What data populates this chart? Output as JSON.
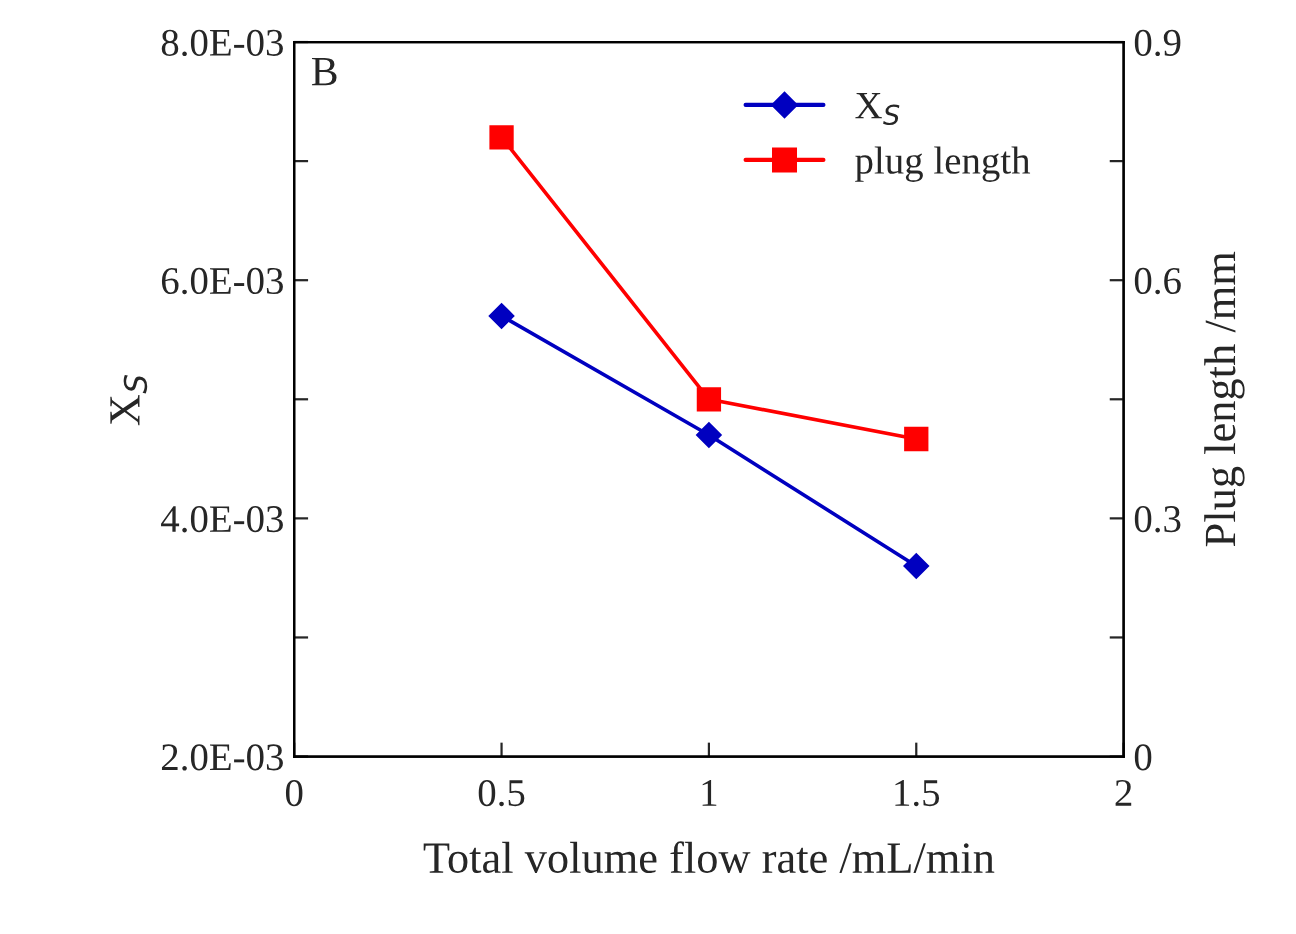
{
  "chart_data": {
    "type": "line",
    "xlabel": "Total volume flow rate /mL/min",
    "ylabel": "X$_{S}$",
    "y2label": "Plug length /mm",
    "x": [
      0.5,
      1,
      1.5
    ],
    "series": [
      {
        "name": "X$_{S}$",
        "color": "#0000c0",
        "values": [
          0.0057,
          0.0047,
          0.0036
        ],
        "marker": "diamond"
      },
      {
        "name": "plug length",
        "color": "#ff0000",
        "values": [
          0.78,
          0.45,
          0.4
        ],
        "marker": "square",
        "axis": "y2"
      }
    ],
    "xlim": [
      0,
      2
    ],
    "xticks": [
      0,
      0.5,
      1,
      1.5,
      2
    ],
    "ylim": [
      0.002,
      0.008
    ],
    "yticks": [
      {
        "value": 0.002,
        "label": "2.0E-03"
      },
      {
        "value": 0.003,
        "label": null
      },
      {
        "value": 0.004,
        "label": "4.0E-03"
      },
      {
        "value": 0.005,
        "label": null
      },
      {
        "value": 0.006,
        "label": "6.0E-03"
      },
      {
        "value": 0.007,
        "label": null
      },
      {
        "value": 0.008,
        "label": "8.0E-03"
      }
    ],
    "y2lim": [
      0,
      0.9
    ],
    "y2ticks": [
      0,
      {
        "value": 0.15,
        "label": null
      },
      0.3,
      {
        "value": 0.45,
        "label": null
      },
      0.6,
      {
        "value": 0.75,
        "label": null
      },
      0.9
    ],
    "annotations": [
      "B"
    ],
    "legend": "top right",
    "grid": false,
    "line_style": "solid"
  }
}
